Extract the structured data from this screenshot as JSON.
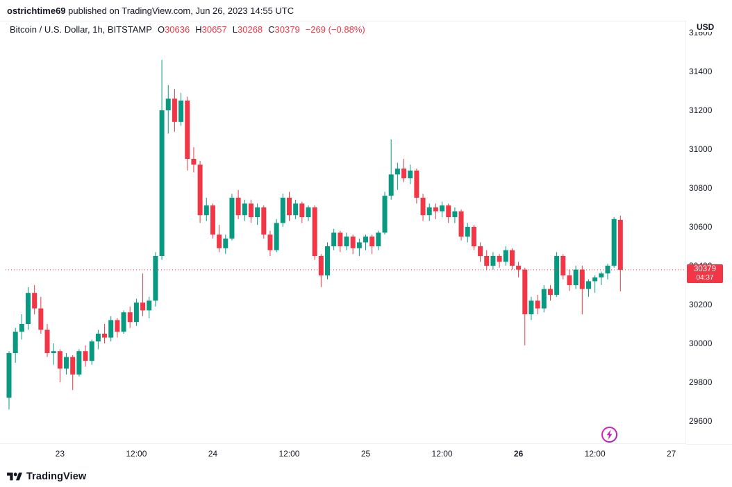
{
  "header": {
    "author": "ostrichtime69",
    "published": " published on TradingView.com, Jun 26, 2023 14:55 UTC"
  },
  "legend": {
    "symbol": "Bitcoin / U.S. Dollar, 1h, BITSTAMP",
    "ohlc": {
      "o_label": "O",
      "o": "30636",
      "h_label": "H",
      "h": "30657",
      "l_label": "L",
      "l": "30268",
      "c_label": "C",
      "c": "30379"
    },
    "change": "−269 (−0.88%)"
  },
  "price_axis": {
    "unit": "USD",
    "ticks": [
      31600,
      31400,
      31200,
      31000,
      30800,
      30600,
      30400,
      30200,
      30000,
      29800,
      29600
    ]
  },
  "time_axis": {
    "ticks": [
      {
        "index": 8,
        "label": "23",
        "bold": false
      },
      {
        "index": 20,
        "label": "12:00",
        "bold": false
      },
      {
        "index": 32,
        "label": "24",
        "bold": false
      },
      {
        "index": 44,
        "label": "12:00",
        "bold": false
      },
      {
        "index": 56,
        "label": "25",
        "bold": false
      },
      {
        "index": 68,
        "label": "12:00",
        "bold": false
      },
      {
        "index": 80,
        "label": "26",
        "bold": true
      },
      {
        "index": 92,
        "label": "12:00",
        "bold": false
      },
      {
        "index": 104,
        "label": "27",
        "bold": false
      }
    ]
  },
  "price_line": {
    "price": 30379,
    "price_text": "30379",
    "countdown": "04:37"
  },
  "footer": {
    "brand": "TradingView"
  },
  "colors": {
    "up": "#089981",
    "down": "#f23645",
    "text": "#131722",
    "grid": "#e0e3eb",
    "price_label_bg": "#f23645",
    "flash_start": "#ee1ebd",
    "flash_end": "#9c27b0"
  },
  "chart_data": {
    "type": "candlestick",
    "title": "Bitcoin / U.S. Dollar, 1h, BITSTAMP",
    "symbol": "BTC/USD",
    "interval": "1h",
    "exchange": "BITSTAMP",
    "grid": false,
    "ylim": [
      29450,
      31620
    ],
    "x_axis_labels": [
      "23",
      "12:00",
      "24",
      "12:00",
      "25",
      "12:00",
      "26",
      "12:00",
      "27"
    ],
    "current_bar": {
      "open": 30636,
      "high": 30657,
      "low": 30268,
      "close": 30379,
      "change": -269,
      "change_pct": -0.88
    },
    "candles_format": [
      "open",
      "high",
      "low",
      "close"
    ],
    "candles": [
      [
        29720,
        29960,
        29660,
        29950
      ],
      [
        29950,
        30080,
        29900,
        30060
      ],
      [
        30060,
        30150,
        30020,
        30100
      ],
      [
        30100,
        30290,
        30070,
        30260
      ],
      [
        30260,
        30300,
        30150,
        30180
      ],
      [
        30180,
        30240,
        30050,
        30070
      ],
      [
        30070,
        30100,
        29930,
        29950
      ],
      [
        29950,
        30000,
        29890,
        29960
      ],
      [
        29960,
        29970,
        29800,
        29870
      ],
      [
        29870,
        29950,
        29840,
        29930
      ],
      [
        29930,
        29940,
        29760,
        29840
      ],
      [
        29840,
        29970,
        29830,
        29960
      ],
      [
        29960,
        29990,
        29880,
        29910
      ],
      [
        29910,
        30020,
        29890,
        30010
      ],
      [
        30010,
        30070,
        29970,
        30050
      ],
      [
        30050,
        30100,
        30000,
        30030
      ],
      [
        30030,
        30140,
        30010,
        30120
      ],
      [
        30120,
        30130,
        30030,
        30060
      ],
      [
        30060,
        30170,
        30050,
        30160
      ],
      [
        30160,
        30190,
        30080,
        30110
      ],
      [
        30110,
        30230,
        30090,
        30210
      ],
      [
        30210,
        30360,
        30140,
        30170
      ],
      [
        30170,
        30240,
        30130,
        30220
      ],
      [
        30220,
        30470,
        30190,
        30450
      ],
      [
        30450,
        31460,
        30430,
        31200
      ],
      [
        31200,
        31330,
        31080,
        31260
      ],
      [
        31260,
        31310,
        31090,
        31140
      ],
      [
        31140,
        31290,
        31120,
        31250
      ],
      [
        31250,
        31270,
        30890,
        30950
      ],
      [
        30950,
        31010,
        30880,
        30920
      ],
      [
        30920,
        30940,
        30620,
        30660
      ],
      [
        30660,
        30750,
        30630,
        30710
      ],
      [
        30710,
        30720,
        30540,
        30560
      ],
      [
        30560,
        30610,
        30470,
        30490
      ],
      [
        30490,
        30560,
        30460,
        30540
      ],
      [
        30540,
        30770,
        30530,
        30750
      ],
      [
        30750,
        30790,
        30640,
        30660
      ],
      [
        30660,
        30740,
        30630,
        30720
      ],
      [
        30720,
        30740,
        30620,
        30650
      ],
      [
        30650,
        30720,
        30610,
        30700
      ],
      [
        30700,
        30710,
        30540,
        30560
      ],
      [
        30560,
        30580,
        30450,
        30480
      ],
      [
        30480,
        30640,
        30470,
        30620
      ],
      [
        30620,
        30770,
        30600,
        30750
      ],
      [
        30750,
        30780,
        30630,
        30660
      ],
      [
        30660,
        30740,
        30640,
        30720
      ],
      [
        30720,
        30730,
        30620,
        30650
      ],
      [
        30650,
        30710,
        30630,
        30700
      ],
      [
        30700,
        30710,
        30430,
        30450
      ],
      [
        30450,
        30460,
        30290,
        30350
      ],
      [
        30350,
        30520,
        30330,
        30500
      ],
      [
        30500,
        30590,
        30480,
        30570
      ],
      [
        30570,
        30580,
        30470,
        30500
      ],
      [
        30500,
        30570,
        30480,
        30550
      ],
      [
        30550,
        30560,
        30460,
        30490
      ],
      [
        30490,
        30540,
        30450,
        30520
      ],
      [
        30520,
        30560,
        30480,
        30550
      ],
      [
        30550,
        30560,
        30460,
        30500
      ],
      [
        30500,
        30580,
        30480,
        30570
      ],
      [
        30570,
        30780,
        30560,
        30760
      ],
      [
        30760,
        31050,
        30740,
        30870
      ],
      [
        30870,
        30930,
        30790,
        30900
      ],
      [
        30900,
        30950,
        30830,
        30850
      ],
      [
        30850,
        30920,
        30820,
        30890
      ],
      [
        30890,
        30900,
        30720,
        30750
      ],
      [
        30750,
        30770,
        30630,
        30660
      ],
      [
        30660,
        30720,
        30630,
        30700
      ],
      [
        30700,
        30720,
        30640,
        30680
      ],
      [
        30680,
        30730,
        30650,
        30710
      ],
      [
        30710,
        30720,
        30620,
        30650
      ],
      [
        30650,
        30700,
        30620,
        30680
      ],
      [
        30680,
        30690,
        30530,
        30550
      ],
      [
        30550,
        30620,
        30520,
        30600
      ],
      [
        30600,
        30610,
        30480,
        30500
      ],
      [
        30500,
        30520,
        30420,
        30450
      ],
      [
        30450,
        30480,
        30380,
        30400
      ],
      [
        30400,
        30470,
        30380,
        30450
      ],
      [
        30450,
        30460,
        30390,
        30420
      ],
      [
        30420,
        30500,
        30400,
        30480
      ],
      [
        30480,
        30490,
        30380,
        30400
      ],
      [
        30400,
        30420,
        30340,
        30380
      ],
      [
        30380,
        30390,
        29990,
        30150
      ],
      [
        30150,
        30240,
        30120,
        30220
      ],
      [
        30220,
        30250,
        30150,
        30180
      ],
      [
        30180,
        30300,
        30160,
        30280
      ],
      [
        30280,
        30300,
        30220,
        30250
      ],
      [
        30250,
        30470,
        30240,
        30450
      ],
      [
        30450,
        30460,
        30330,
        30350
      ],
      [
        30350,
        30380,
        30270,
        30300
      ],
      [
        30300,
        30400,
        30280,
        30380
      ],
      [
        30380,
        30400,
        30150,
        30280
      ],
      [
        30280,
        30330,
        30240,
        30320
      ],
      [
        30320,
        30350,
        30260,
        30340
      ],
      [
        30340,
        30370,
        30300,
        30360
      ],
      [
        30360,
        30410,
        30330,
        30400
      ],
      [
        30400,
        30650,
        30390,
        30640
      ],
      [
        30636,
        30657,
        30268,
        30379
      ]
    ]
  }
}
